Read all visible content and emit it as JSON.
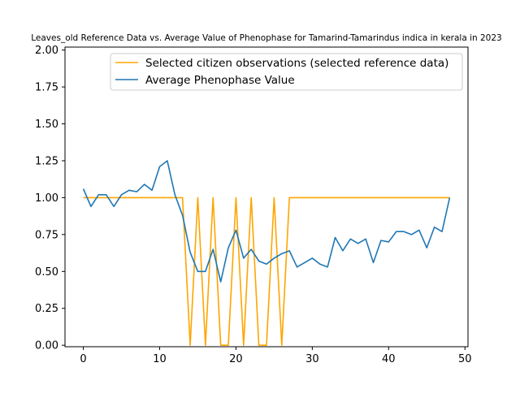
{
  "chart_data": {
    "type": "line",
    "title": "Leaves_old Reference Data vs. Average Value of Phenophase for Tamarind-Tamarindus indica in kerala in 2023",
    "xlabel": "",
    "ylabel": "",
    "xlim": [
      -2.4,
      50.4
    ],
    "ylim": [
      -0.01,
      2.02
    ],
    "xticks": [
      0,
      10,
      20,
      30,
      40,
      50
    ],
    "yticks": [
      0.0,
      0.25,
      0.5,
      0.75,
      1.0,
      1.25,
      1.5,
      1.75,
      2.0
    ],
    "xtick_labels": [
      "0",
      "10",
      "20",
      "30",
      "40",
      "50"
    ],
    "ytick_labels": [
      "0.00",
      "0.25",
      "0.50",
      "0.75",
      "1.00",
      "1.25",
      "1.50",
      "1.75",
      "2.00"
    ],
    "grid": false,
    "legend_position": "top-right",
    "series": [
      {
        "name": "Selected citizen observations (selected reference data)",
        "color": "#FFA500",
        "x": [
          0,
          1,
          2,
          3,
          4,
          5,
          6,
          7,
          8,
          9,
          10,
          11,
          12,
          13,
          14,
          15,
          16,
          17,
          18,
          19,
          20,
          21,
          22,
          23,
          24,
          25,
          26,
          27,
          28,
          29,
          30,
          31,
          32,
          33,
          34,
          35,
          36,
          37,
          38,
          39,
          40,
          41,
          42,
          43,
          44,
          45,
          46,
          47,
          48
        ],
        "values": [
          1,
          1,
          1,
          1,
          1,
          1,
          1,
          1,
          1,
          1,
          1,
          1,
          1,
          1,
          0,
          1,
          0,
          1,
          0,
          0,
          1,
          0,
          1,
          0,
          0,
          1,
          0,
          1,
          1,
          1,
          1,
          1,
          1,
          1,
          1,
          1,
          1,
          1,
          1,
          1,
          1,
          1,
          1,
          1,
          1,
          1,
          1,
          1,
          1
        ]
      },
      {
        "name": "Average Phenophase Value",
        "color": "#1F77B4",
        "x": [
          0,
          1,
          2,
          3,
          4,
          5,
          6,
          7,
          8,
          9,
          10,
          11,
          12,
          13,
          14,
          15,
          16,
          17,
          18,
          19,
          20,
          21,
          22,
          23,
          24,
          25,
          26,
          27,
          28,
          29,
          30,
          31,
          32,
          33,
          34,
          35,
          36,
          37,
          38,
          39,
          40,
          41,
          42,
          43,
          44,
          45,
          46,
          47,
          48
        ],
        "values": [
          1.06,
          0.94,
          1.02,
          1.02,
          0.94,
          1.02,
          1.05,
          1.04,
          1.09,
          1.05,
          1.21,
          1.25,
          1.02,
          0.88,
          0.63,
          0.5,
          0.5,
          0.65,
          0.43,
          0.66,
          0.78,
          0.59,
          0.65,
          0.57,
          0.55,
          0.59,
          0.62,
          0.64,
          0.53,
          0.56,
          0.59,
          0.55,
          0.53,
          0.73,
          0.64,
          0.72,
          0.69,
          0.72,
          0.56,
          0.71,
          0.7,
          0.77,
          0.77,
          0.75,
          0.78,
          0.66,
          0.8,
          0.77,
          1.0
        ]
      }
    ]
  }
}
